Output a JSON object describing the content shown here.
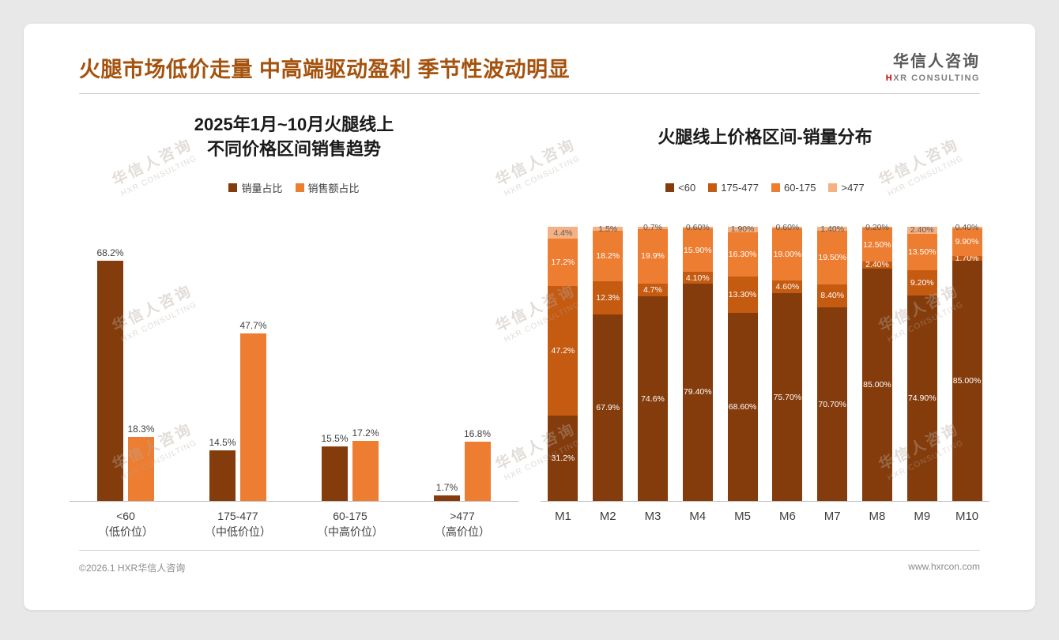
{
  "slide": {
    "title": "火腿市场低价走量 中高端驱动盈利 季节性波动明显"
  },
  "logo": {
    "cn": "华信人咨询",
    "en_mark": "H",
    "en_rest": "XR CONSULTING"
  },
  "watermark": {
    "cn": "华信人咨询",
    "en": "HXR CONSULTING"
  },
  "footer": {
    "left": "©2026.1 HXR华信人咨询",
    "right": "www.hxrcon.com"
  },
  "colors": {
    "title": "#a4520d",
    "dark_brown": "#843c0c",
    "mid_orange": "#c55a11",
    "orange": "#ed7d31",
    "light_tan": "#f4b183"
  },
  "chart_data": [
    {
      "type": "bar",
      "title": "2025年1月~10月火腿线上不同价格区间销售趋势",
      "title_line1": "2025年1月~10月火腿线上",
      "title_line2": "不同价格区间销售趋势",
      "categories": [
        "<60",
        "175-477",
        "60-175",
        ">477"
      ],
      "category_sublabels": [
        "（低价位）",
        "（中低价位）",
        "（中高价位）",
        "（高价位）"
      ],
      "series": [
        {
          "name": "销量占比",
          "color": "#843c0c",
          "values": [
            68.2,
            14.5,
            15.5,
            1.7
          ],
          "labels": [
            "68.2%",
            "14.5%",
            "15.5%",
            "1.7%"
          ]
        },
        {
          "name": "销售额占比",
          "color": "#ed7d31",
          "values": [
            18.3,
            47.7,
            17.2,
            16.8
          ],
          "labels": [
            "18.3%",
            "47.7%",
            "17.2%",
            "16.8%"
          ]
        }
      ],
      "ylim": [
        0,
        70
      ],
      "grid": false,
      "legend_position": "top"
    },
    {
      "type": "bar",
      "stacked": true,
      "stacked_100": true,
      "title": "火腿线上价格区间-销量分布",
      "categories": [
        "M1",
        "M2",
        "M3",
        "M4",
        "M5",
        "M6",
        "M7",
        "M8",
        "M9",
        "M10"
      ],
      "series": [
        {
          "name": "<60",
          "color": "#843c0c",
          "values": [
            31.2,
            67.9,
            74.6,
            79.4,
            68.6,
            75.7,
            70.7,
            85.0,
            74.9,
            85.0
          ],
          "labels": [
            "31.2%",
            "67.9%",
            "74.6%",
            "79.40%",
            "68.60%",
            "75.70%",
            "70.70%",
            "85.00%",
            "74.90%",
            "85.00%"
          ]
        },
        {
          "name": "175-477",
          "color": "#c55a11",
          "values": [
            47.2,
            12.3,
            4.7,
            4.1,
            13.3,
            4.6,
            8.4,
            2.4,
            9.2,
            1.7
          ],
          "labels": [
            "47.2%",
            "12.3%",
            "4.7%",
            "4.10%",
            "13.30%",
            "4.60%",
            "8.40%",
            "2.40%",
            "9.20%",
            "1.70%"
          ]
        },
        {
          "name": "60-175",
          "color": "#ed7d31",
          "values": [
            17.2,
            18.2,
            19.9,
            15.9,
            16.3,
            19.0,
            19.5,
            12.5,
            13.5,
            9.9
          ],
          "labels": [
            "17.2%",
            "18.2%",
            "19.9%",
            "15.90%",
            "16.30%",
            "19.00%",
            "19.50%",
            "12.50%",
            "13.50%",
            "9.90%"
          ]
        },
        {
          "name": ">477",
          "color": "#f4b183",
          "values": [
            4.4,
            1.5,
            0.7,
            0.6,
            1.9,
            0.6,
            1.4,
            0.2,
            2.4,
            0.4
          ],
          "labels": [
            "4.4%",
            "1.5%",
            "0.7%",
            "0.60%",
            "1.90%",
            "0.60%",
            "1.40%",
            "0.20%",
            "2.40%",
            "0.40%"
          ]
        }
      ],
      "grid": false,
      "legend_position": "top"
    }
  ]
}
